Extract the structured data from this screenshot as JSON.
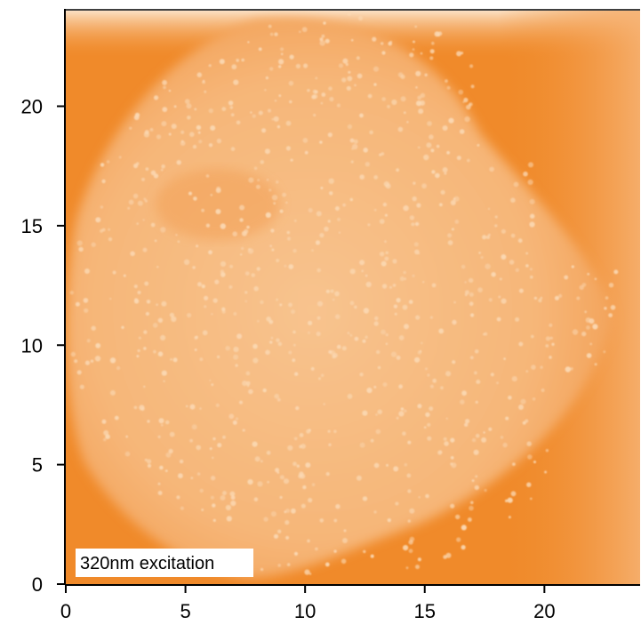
{
  "chart_data": {
    "type": "heatmap",
    "title": "",
    "xlabel": "",
    "ylabel": "",
    "xlim": [
      0,
      24
    ],
    "ylim": [
      0,
      24
    ],
    "x_ticks": [
      0,
      5,
      10,
      15,
      20
    ],
    "y_ticks": [
      0,
      5,
      10,
      15,
      20
    ],
    "x_tick_labels": [
      "0",
      "5",
      "10",
      "15",
      "20"
    ],
    "y_tick_labels": [
      "0",
      "5",
      "10",
      "15",
      "20"
    ],
    "annotation": "320nm excitation",
    "colors": {
      "background": "#f08a2a",
      "mid": "#f4a55a",
      "bright": "#fbd9b4",
      "top_band": "#fbe0c4"
    },
    "grid": false,
    "legend": "none"
  }
}
